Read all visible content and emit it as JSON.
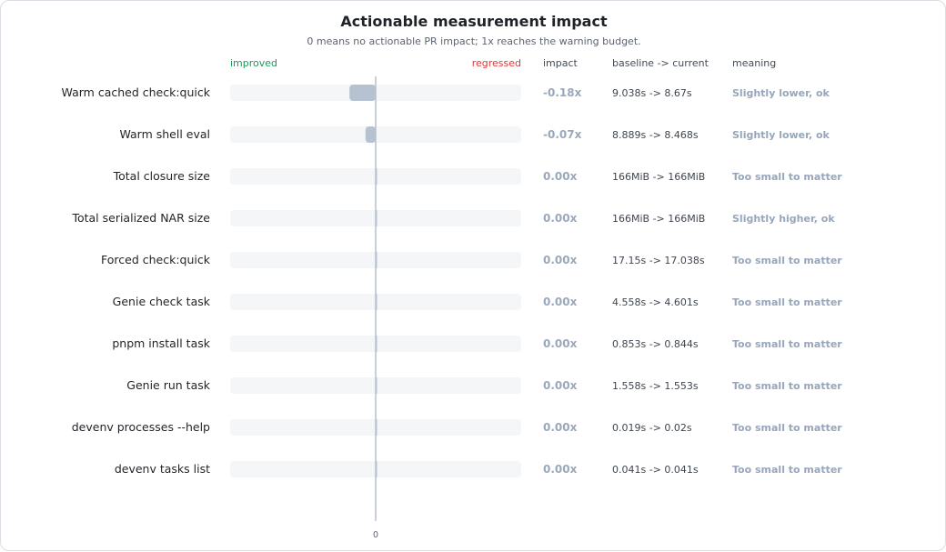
{
  "chart_data": {
    "type": "bar",
    "title": "Actionable measurement impact",
    "subtitle": "0 means no actionable PR impact; 1x reaches the warning budget.",
    "direction_labels": {
      "left": "improved",
      "right": "regressed"
    },
    "columns": {
      "impact": "impact",
      "delta": "baseline -> current",
      "meaning": "meaning"
    },
    "x_tick": "0",
    "xlim": [
      -1,
      1
    ],
    "bar_color": "#b7c2d1",
    "track_color": "#f5f6f8",
    "axis_color": "#b8c1cc",
    "rows": [
      {
        "label": "Warm cached check:quick",
        "value": -0.18,
        "impact": "-0.18x",
        "delta": "9.038s -> 8.67s",
        "meaning": "Slightly lower, ok"
      },
      {
        "label": "Warm shell eval",
        "value": -0.07,
        "impact": "-0.07x",
        "delta": "8.889s -> 8.468s",
        "meaning": "Slightly lower, ok"
      },
      {
        "label": "Total closure size",
        "value": 0.0,
        "impact": "0.00x",
        "delta": "166MiB -> 166MiB",
        "meaning": "Too small to matter"
      },
      {
        "label": "Total serialized NAR size",
        "value": 0.0,
        "impact": "0.00x",
        "delta": "166MiB -> 166MiB",
        "meaning": "Slightly higher, ok"
      },
      {
        "label": "Forced check:quick",
        "value": 0.0,
        "impact": "0.00x",
        "delta": "17.15s -> 17.038s",
        "meaning": "Too small to matter"
      },
      {
        "label": "Genie check task",
        "value": 0.0,
        "impact": "0.00x",
        "delta": "4.558s -> 4.601s",
        "meaning": "Too small to matter"
      },
      {
        "label": "pnpm install task",
        "value": 0.0,
        "impact": "0.00x",
        "delta": "0.853s -> 0.844s",
        "meaning": "Too small to matter"
      },
      {
        "label": "Genie run task",
        "value": 0.0,
        "impact": "0.00x",
        "delta": "1.558s -> 1.553s",
        "meaning": "Too small to matter"
      },
      {
        "label": "devenv processes --help",
        "value": 0.0,
        "impact": "0.00x",
        "delta": "0.019s -> 0.02s",
        "meaning": "Too small to matter"
      },
      {
        "label": "devenv tasks list",
        "value": 0.0,
        "impact": "0.00x",
        "delta": "0.041s -> 0.041s",
        "meaning": "Too small to matter"
      }
    ]
  }
}
